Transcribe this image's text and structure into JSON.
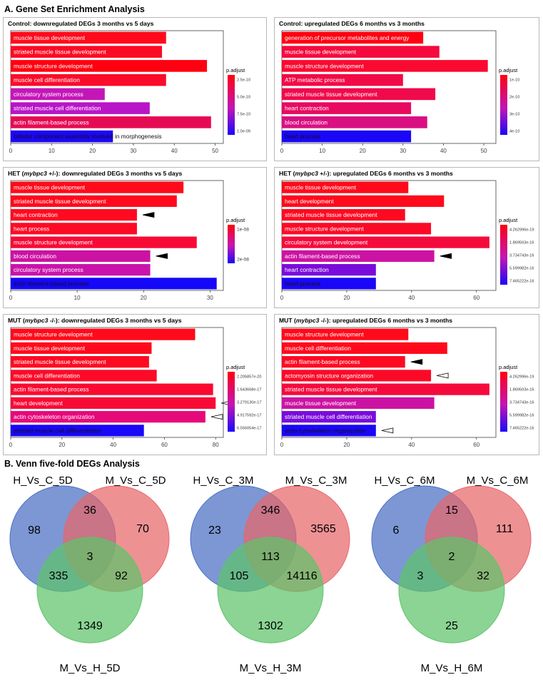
{
  "section_a": {
    "title": "A. Gene Set Enrichment Analysis"
  },
  "section_b": {
    "title": "B. Venn five-fold DEGs Analysis"
  },
  "chart_data": [
    {
      "type": "bar",
      "orientation": "horizontal",
      "title": "Control: downregulated DEGs 3 months vs 5 days",
      "title_parts": [
        {
          "t": "Control: downregulated DEGs 3 months vs 5 days",
          "i": false
        }
      ],
      "categories": [
        "muscle tissue development",
        "striated muscle tissue development",
        "muscle structure development",
        "muscle cell differentiation",
        "circulatory system process",
        "striated muscle cell differentiation",
        "actin filament-based process",
        "cellular component assembly involved in morphogenesis"
      ],
      "values": [
        38,
        37,
        48,
        38,
        23,
        34,
        49,
        25
      ],
      "bar_colors": [
        "#ff0a1a",
        "#fc0a24",
        "#ff0010",
        "#fa0c2a",
        "#c416b8",
        "#b815c7",
        "#e60a55",
        "#1b07f5"
      ],
      "markers": [],
      "xlim": [
        0,
        52
      ],
      "xticks": [
        0,
        10,
        20,
        30,
        40,
        50
      ],
      "legend": {
        "title": "p.adjust",
        "labels": [
          "2.5e-10",
          "5.0e-10",
          "7.5e-10",
          "1.0e-09"
        ]
      }
    },
    {
      "type": "bar",
      "orientation": "horizontal",
      "title": "Control: upregulated DEGs 6 months vs 3 months",
      "title_parts": [
        {
          "t": "Control: upregulated DEGs 6 months vs 3 months",
          "i": false
        }
      ],
      "categories": [
        "generation of precursor metabolites and energy",
        "muscle tissue development",
        "muscle structure development",
        "ATP metabolic process",
        "striated muscle tissue development",
        "heart contraction",
        "blood circulation",
        "heart process"
      ],
      "values": [
        35,
        39,
        51,
        30,
        38,
        32,
        36,
        32
      ],
      "bar_colors": [
        "#ff0010",
        "#f50a3e",
        "#fa0a30",
        "#f20a46",
        "#f00a4c",
        "#e80a60",
        "#d90f82",
        "#1a07f7"
      ],
      "markers": [],
      "xlim": [
        0,
        53
      ],
      "xticks": [
        0,
        10,
        20,
        30,
        40,
        50
      ],
      "legend": {
        "title": "p.adjust",
        "labels": [
          "1e-10",
          "2e-10",
          "3e-10",
          "4e-10"
        ]
      }
    },
    {
      "type": "bar",
      "orientation": "horizontal",
      "title": "HET (mybpc3 +/-): downregulated DEGs 3 months vs 5 days",
      "title_parts": [
        {
          "t": "HET (",
          "i": false
        },
        {
          "t": "mybpc3",
          "i": true
        },
        {
          "t": " +/-): downregulated DEGs 3 months vs 5 days",
          "i": false
        }
      ],
      "categories": [
        "muscle tissue development",
        "striated muscle tissue development",
        "heart contraction",
        "heart process",
        "muscle structure development",
        "blood circulation",
        "circulatory system process",
        "actin filament-based process"
      ],
      "values": [
        26,
        25,
        19,
        19,
        28,
        21,
        21,
        31
      ],
      "bar_colors": [
        "#ff0a1a",
        "#ff0a1c",
        "#ff0a20",
        "#fd0a24",
        "#f80a36",
        "#cc12a3",
        "#c913ab",
        "#1507f8"
      ],
      "markers": [
        {
          "index": 2,
          "fill": "black"
        },
        {
          "index": 5,
          "fill": "black"
        }
      ],
      "xlim": [
        0,
        32
      ],
      "xticks": [
        0,
        10,
        20,
        30
      ],
      "legend": {
        "title": "p.adjust",
        "labels": [
          "1e-08",
          "2e-08"
        ]
      }
    },
    {
      "type": "bar",
      "orientation": "horizontal",
      "title": "HET (mybpc3 +/-): upregulated DEGs 6 months vs 3 months",
      "title_parts": [
        {
          "t": "HET (",
          "i": false
        },
        {
          "t": "mybpc3",
          "i": true
        },
        {
          "t": " +/-): upregulated DEGs 6 months vs 3 months",
          "i": false
        }
      ],
      "categories": [
        "muscle tissue development",
        "heart development",
        "striated muscle tissue development",
        "muscle structure development",
        "circulatory system development",
        "actin filament-based process",
        "heart contraction",
        "heart process"
      ],
      "values": [
        39,
        50,
        38,
        46,
        64,
        47,
        29,
        29
      ],
      "bar_colors": [
        "#ff0a1a",
        "#ff0a1c",
        "#fd0a22",
        "#fb0a26",
        "#f50a3c",
        "#cc12a3",
        "#7a0bdb",
        "#1a07f7"
      ],
      "markers": [
        {
          "index": 5,
          "fill": "black"
        }
      ],
      "xlim": [
        0,
        66
      ],
      "xticks": [
        0,
        20,
        40,
        60
      ],
      "legend": {
        "title": "p.adjust",
        "labels": [
          "4.262996e-19",
          "1.869503e-16",
          "3.734743e-16",
          "5.599982e-16",
          "7.465222e-16"
        ]
      }
    },
    {
      "type": "bar",
      "orientation": "horizontal",
      "title": "MUT (mybpc3 -/-): downregulated DEGs 3 months vs 5 days",
      "title_parts": [
        {
          "t": "MUT (",
          "i": false
        },
        {
          "t": "mybpc3",
          "i": true
        },
        {
          "t": " -/-): downregulated DEGs 3 months vs 5 days",
          "i": false
        }
      ],
      "categories": [
        "muscle structure development",
        "muscle tissue development",
        "striated muscle tissue development",
        "muscle cell differentiation",
        "actin filament-based process",
        "heart development",
        "actin cytoskeleton organization",
        "striated muscle cell differentiation"
      ],
      "values": [
        72,
        55,
        54,
        57,
        79,
        80,
        76,
        52
      ],
      "bar_colors": [
        "#ff0a1a",
        "#ff0a1c",
        "#fd0a22",
        "#fc0a28",
        "#fa0a30",
        "#f80a36",
        "#e6097a",
        "#1a07f7"
      ],
      "markers": [
        {
          "index": 5,
          "fill": "white"
        },
        {
          "index": 6,
          "fill": "white"
        }
      ],
      "xlim": [
        0,
        83
      ],
      "xticks": [
        0,
        20,
        40,
        60,
        80
      ],
      "legend": {
        "title": "p.adjust",
        "labels": [
          "2.205857e-20",
          "1.643668e-17",
          "3.279130e-17",
          "4.917592e-17",
          "6.556054e-17"
        ]
      }
    },
    {
      "type": "bar",
      "orientation": "horizontal",
      "title": "MUT (mybpc3 -/-): upregulated DEGs 6 months vs 3 months",
      "title_parts": [
        {
          "t": "MUT (",
          "i": false
        },
        {
          "t": "mybpc3",
          "i": true
        },
        {
          "t": " -/-): upregulated DEGs 6 months vs 3 months",
          "i": false
        }
      ],
      "categories": [
        "muscle structure development",
        "muscle cell differentiation",
        "actin filament-based process",
        "actomyosin structure organization",
        "striated muscle tissue development",
        "muscle tissue development",
        "striated muscle cell differentiation",
        "actin cytoskeleton organization"
      ],
      "values": [
        39,
        51,
        38,
        46,
        64,
        47,
        29,
        29
      ],
      "bar_colors": [
        "#ff0a1a",
        "#ff0a1c",
        "#fd0a22",
        "#fb0a28",
        "#f50a3c",
        "#cc12a3",
        "#7a0bdb",
        "#1a07f7"
      ],
      "markers": [
        {
          "index": 2,
          "fill": "black"
        },
        {
          "index": 3,
          "fill": "white"
        },
        {
          "index": 7,
          "fill": "white"
        }
      ],
      "xlim": [
        0,
        66
      ],
      "xticks": [
        0,
        20,
        40,
        60
      ],
      "legend": {
        "title": "p.adjust",
        "labels": [
          "4.262996e-19",
          "1.869503e-16",
          "3.734743e-16",
          "5.599982e-16",
          "7.465222e-16"
        ]
      }
    }
  ],
  "venn": [
    {
      "set_labels": [
        "H_Vs_C_5D",
        "M_Vs_C_5D",
        "M_Vs_H_5D"
      ],
      "regions": {
        "a_only": "98",
        "b_only": "70",
        "c_only": "1349",
        "ab": "36",
        "ac": "335",
        "bc": "92",
        "abc": "3"
      }
    },
    {
      "set_labels": [
        "H_Vs_C_3M",
        "M_Vs_C_3M",
        "M_Vs_H_3M"
      ],
      "regions": {
        "a_only": "23",
        "b_only": "3565",
        "c_only": "1302",
        "ab": "346",
        "ac": "105",
        "bc": "14116",
        "abc": "113"
      }
    },
    {
      "set_labels": [
        "H_Vs_C_6M",
        "M_Vs_C_6M",
        "M_Vs_H_6M"
      ],
      "regions": {
        "a_only": "6",
        "b_only": "111",
        "c_only": "25",
        "ab": "15",
        "ac": "3",
        "bc": "32",
        "abc": "2"
      }
    }
  ],
  "venn_colors": {
    "a": "#4a6fc4",
    "b": "#e8666a",
    "c": "#5ec46a"
  }
}
